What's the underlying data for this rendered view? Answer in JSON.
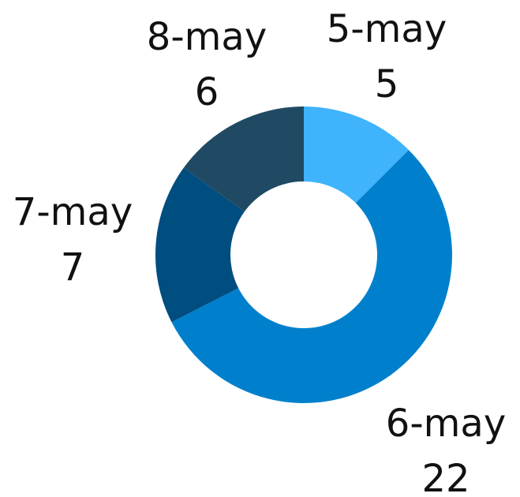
{
  "chart_data": {
    "type": "donut",
    "categories": [
      "5-may",
      "6-may",
      "7-may",
      "8-may"
    ],
    "values": [
      5,
      22,
      7,
      6
    ],
    "colors": [
      "#3fb3fb",
      "#0080cc",
      "#004d80",
      "#204a63"
    ]
  }
}
